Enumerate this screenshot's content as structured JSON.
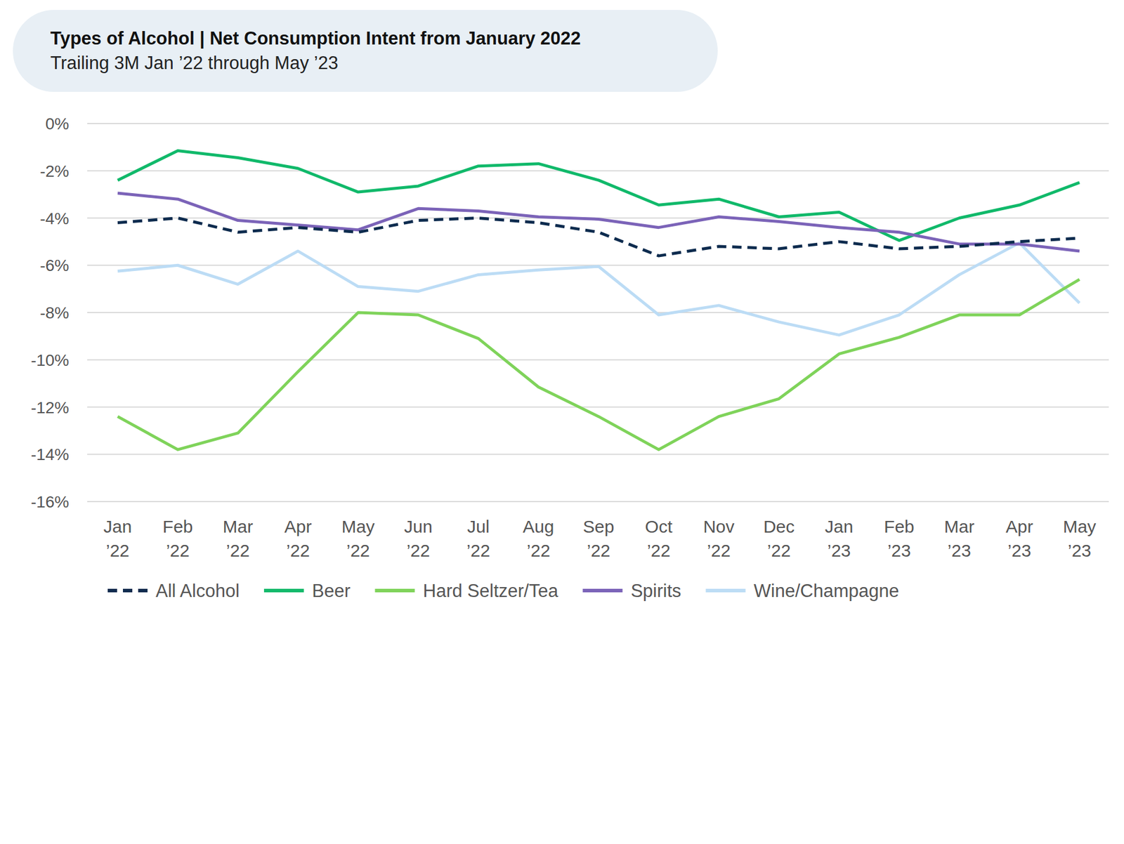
{
  "chart_data": {
    "type": "line",
    "title": "Types of Alcohol | Net Consumption Intent from January 2022",
    "subtitle": "Trailing 3M Jan ’22 through May ’23",
    "categories": [
      "Jan ’22",
      "Feb ’22",
      "Mar ’22",
      "Apr ’22",
      "May ’22",
      "Jun ’22",
      "Jul ’22",
      "Aug ’22",
      "Sep ’22",
      "Oct ’22",
      "Nov ’22",
      "Dec ’22",
      "Jan ’23",
      "Feb ’23",
      "Mar ’23",
      "Apr ’23",
      "May ’23"
    ],
    "ylim": [
      -16,
      0
    ],
    "yticks": [
      {
        "value": 0,
        "label": "0%"
      },
      {
        "value": -2,
        "label": "-2%"
      },
      {
        "value": -4,
        "label": "-4%"
      },
      {
        "value": -6,
        "label": "-6%"
      },
      {
        "value": -8,
        "label": "-8%"
      },
      {
        "value": -10,
        "label": "-10%"
      },
      {
        "value": -12,
        "label": "-12%"
      },
      {
        "value": -14,
        "label": "-14%"
      },
      {
        "value": -16,
        "label": "-16%"
      }
    ],
    "grid": true,
    "legend": "bottom",
    "series": [
      {
        "name": "All Alcohol",
        "color": "#0d2b4e",
        "line_style": "dashed",
        "values": [
          -4.2,
          -4.0,
          -4.6,
          -4.4,
          -4.6,
          -4.1,
          -4.0,
          -4.2,
          -4.6,
          -5.6,
          -5.2,
          -5.3,
          -5.0,
          -5.3,
          -5.2,
          -5.0,
          -4.85
        ]
      },
      {
        "name": "Beer",
        "color": "#10b96a",
        "line_style": "solid",
        "values": [
          -2.4,
          -1.15,
          -1.45,
          -1.9,
          -2.9,
          -2.65,
          -1.8,
          -1.7,
          -2.4,
          -3.45,
          -3.2,
          -3.95,
          -3.75,
          -4.95,
          -4.0,
          -3.45,
          -2.5
        ]
      },
      {
        "name": "Hard Seltzer/Tea",
        "color": "#7fd35a",
        "line_style": "solid",
        "values": [
          -12.4,
          -13.8,
          -13.1,
          -10.5,
          -8.0,
          -8.1,
          -9.1,
          -11.15,
          -12.4,
          -13.8,
          -12.4,
          -11.65,
          -9.75,
          -9.05,
          -8.1,
          -8.1,
          -6.6
        ]
      },
      {
        "name": "Spirits",
        "color": "#7b63b8",
        "line_style": "solid",
        "values": [
          -2.95,
          -3.2,
          -4.1,
          -4.3,
          -4.5,
          -3.6,
          -3.7,
          -3.95,
          -4.05,
          -4.4,
          -3.95,
          -4.15,
          -4.4,
          -4.6,
          -5.1,
          -5.1,
          -5.4
        ]
      },
      {
        "name": "Wine/Champagne",
        "color": "#bcdcf5",
        "line_style": "solid",
        "values": [
          -6.25,
          -6.0,
          -6.8,
          -5.4,
          -6.9,
          -7.1,
          -6.4,
          -6.2,
          -6.05,
          -8.1,
          -7.7,
          -8.4,
          -8.95,
          -8.1,
          -6.4,
          -5.05,
          -7.6
        ]
      }
    ]
  }
}
